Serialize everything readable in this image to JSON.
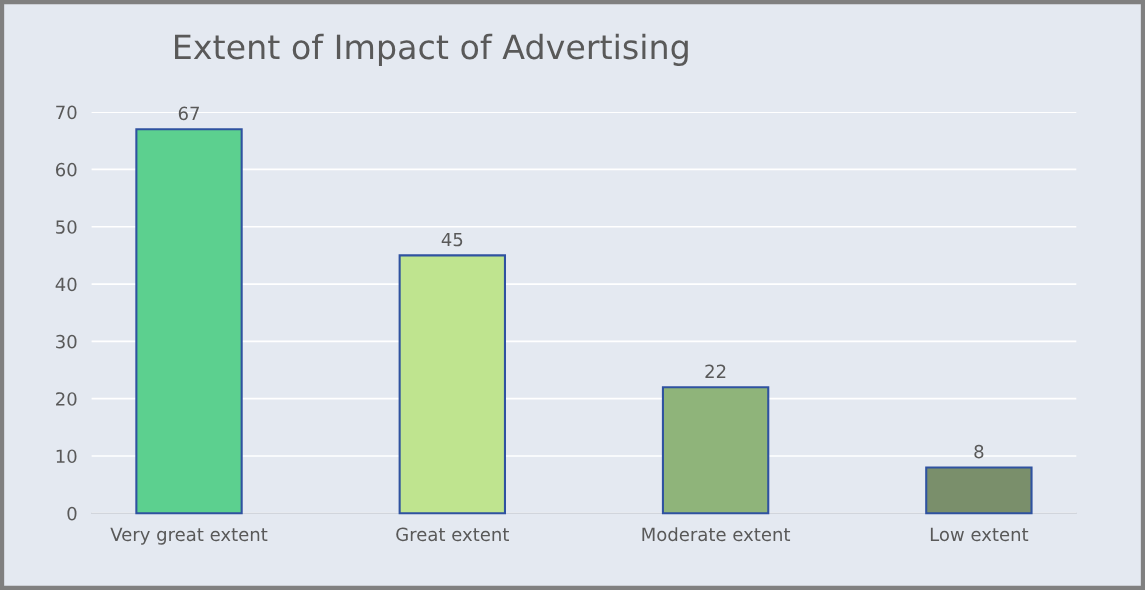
{
  "chart_data": {
    "type": "bar",
    "title": "Extent of Impact of Advertising",
    "categories": [
      "Very great extent",
      "Great extent",
      "Moderate extent",
      "Low extent"
    ],
    "values": [
      67,
      45,
      22,
      8
    ],
    "colors": [
      "#5cd08f",
      "#bfe48f",
      "#8fb47a",
      "#7a8f6b"
    ],
    "ylim": [
      0,
      70
    ],
    "yticks": [
      0,
      10,
      20,
      30,
      40,
      50,
      60,
      70
    ],
    "grid": "y",
    "data_labels": true,
    "legend": false
  }
}
